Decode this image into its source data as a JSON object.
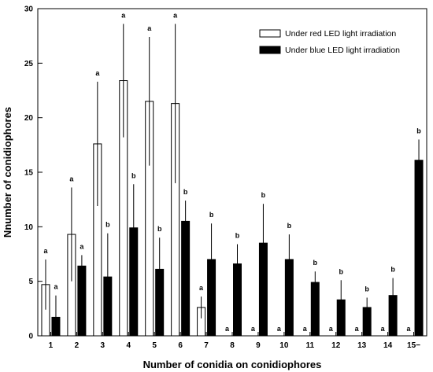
{
  "chart_data": {
    "type": "bar",
    "xlabel": "Number of conidia on conidiophores",
    "ylabel": "Nnumber of conidiophores",
    "ylim": [
      0,
      30
    ],
    "yticks": [
      "0",
      "5",
      "10",
      "15",
      "20",
      "25",
      "30"
    ],
    "categories": [
      "1",
      "2",
      "3",
      "4",
      "5",
      "6",
      "7",
      "8",
      "9",
      "10",
      "11",
      "12",
      "13",
      "14",
      "15−"
    ],
    "legend_position": "top-right",
    "grid": false,
    "series": [
      {
        "name": "Under red LED light irradiation",
        "fill": "#ffffff",
        "stroke": "#000000",
        "values": [
          4.7,
          9.3,
          17.6,
          23.4,
          21.5,
          21.3,
          2.6,
          0,
          0,
          0,
          0,
          0,
          0,
          0,
          0
        ],
        "errors": [
          2.3,
          4.3,
          5.7,
          5.2,
          5.9,
          7.3,
          1.0,
          0,
          0,
          0,
          0,
          0,
          0,
          0,
          0
        ],
        "letters": [
          "a",
          "a",
          "a",
          "a",
          "a",
          "a",
          "a",
          "a",
          "a",
          "a",
          "a",
          "a",
          "a",
          "a",
          "a"
        ]
      },
      {
        "name": "Under blue LED light irradiation",
        "fill": "#000000",
        "stroke": "#000000",
        "values": [
          1.7,
          6.4,
          5.4,
          9.9,
          6.1,
          10.5,
          7.0,
          6.6,
          8.5,
          7.0,
          4.9,
          3.3,
          2.6,
          3.7,
          16.1
        ],
        "errors": [
          2.0,
          1.0,
          4.0,
          4.0,
          2.9,
          1.9,
          3.3,
          1.8,
          3.6,
          2.3,
          1.0,
          1.8,
          0.9,
          1.6,
          1.9
        ],
        "letters": [
          "a",
          "a",
          "b",
          "b",
          "b",
          "b",
          "b",
          "b",
          "b",
          "b",
          "b",
          "b",
          "b",
          "b",
          "b"
        ]
      }
    ]
  }
}
